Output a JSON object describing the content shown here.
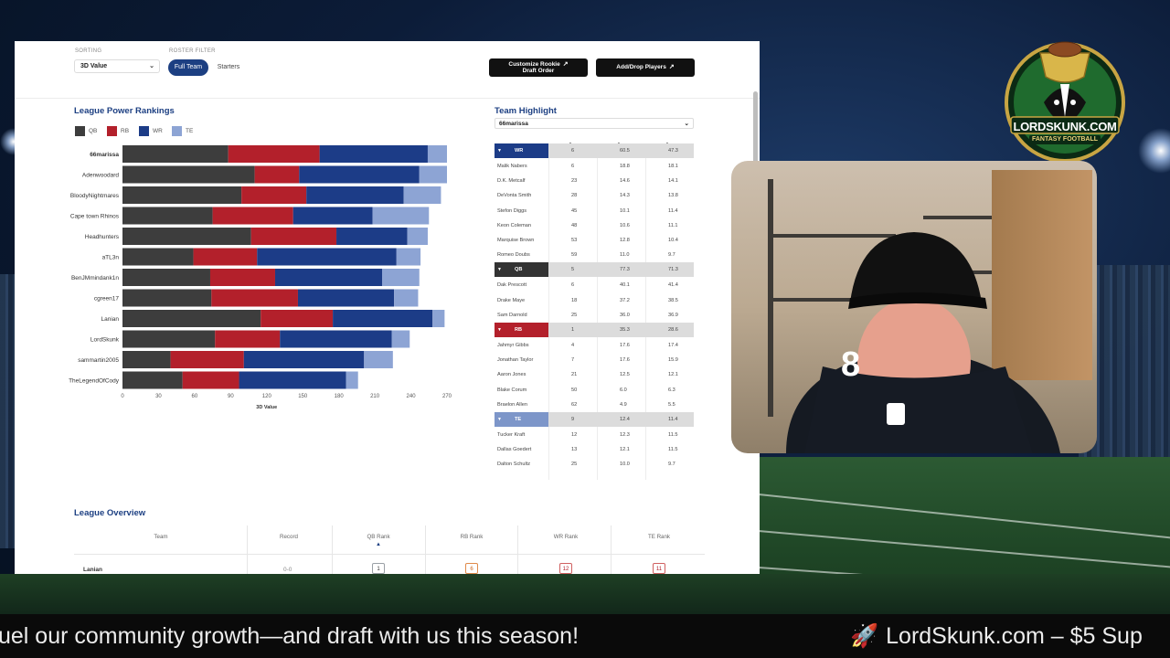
{
  "topbar": {
    "sorting_label": "SORTING",
    "sorting_value": "3D Value",
    "roster_filter_label": "ROSTER FILTER",
    "filter_full_team": "Full Team",
    "filter_starters": "Starters",
    "customize_line1": "Customize Rookie",
    "customize_line2": "Draft Order",
    "add_drop": "Add/Drop Players"
  },
  "colors": {
    "qb": "#3d3d3d",
    "rb": "#b3202b",
    "wr": "#1c3c87",
    "te": "#8da4d4",
    "accent": "#1c3f82"
  },
  "power_rankings": {
    "title": "League Power Rankings",
    "legend": [
      "QB",
      "RB",
      "WR",
      "TE"
    ]
  },
  "chart_data": {
    "type": "bar",
    "orientation": "horizontal-stacked",
    "xlabel": "3D Value",
    "xlim": [
      0,
      270
    ],
    "xticks": [
      "0",
      "30",
      "60",
      "90",
      "120",
      "150",
      "180",
      "210",
      "240",
      "270"
    ],
    "categories": [
      "66marissa",
      "Adenwoodard",
      "BloodyNightmares",
      "Cape town Rhinos",
      "Headhunters",
      "aTL3n",
      "BenJMmindank1n",
      "cgreen17",
      "Lanian",
      "LordSkunk",
      "sammartin2005",
      "TheLegendOfCody"
    ],
    "series": [
      {
        "name": "QB",
        "values": [
          88,
          110,
          99,
          75,
          107,
          59,
          73,
          74,
          115,
          77,
          40,
          50
        ]
      },
      {
        "name": "RB",
        "values": [
          76,
          37,
          54,
          67,
          71,
          53,
          54,
          72,
          60,
          54,
          61,
          47
        ]
      },
      {
        "name": "WR",
        "values": [
          90,
          100,
          81,
          66,
          59,
          116,
          89,
          80,
          83,
          93,
          100,
          89
        ]
      },
      {
        "name": "TE",
        "values": [
          16,
          23,
          31,
          47,
          17,
          20,
          31,
          20,
          10,
          15,
          24,
          10
        ]
      }
    ]
  },
  "team_highlight": {
    "title": "Team Highlight",
    "selected_team": "66marissa",
    "sort_arrows": [
      "▲",
      "▲",
      "▲"
    ],
    "groups": [
      {
        "pos": "WR",
        "color": "#1c3c87",
        "rank": "6",
        "v1": "60.5",
        "v2": "47.3",
        "players": [
          [
            "Malik Nabers",
            "6",
            "18.8",
            "18.1"
          ],
          [
            "D.K. Metcalf",
            "23",
            "14.6",
            "14.1"
          ],
          [
            "DeVonta Smith",
            "28",
            "14.3",
            "13.8"
          ],
          [
            "Stefon Diggs",
            "45",
            "10.1",
            "11.4"
          ],
          [
            "Keon Coleman",
            "48",
            "10.6",
            "11.1"
          ],
          [
            "Marquise Brown",
            "53",
            "12.8",
            "10.4"
          ],
          [
            "Romeo Doubs",
            "59",
            "11.0",
            "9.7"
          ]
        ]
      },
      {
        "pos": "QB",
        "color": "#333333",
        "rank": "5",
        "v1": "77.3",
        "v2": "71.3",
        "players": [
          [
            "Dak Prescott",
            "6",
            "40.1",
            "41.4"
          ],
          [
            "Drake Maye",
            "18",
            "37.2",
            "38.5"
          ],
          [
            "Sam Darnold",
            "25",
            "36.0",
            "36.9"
          ]
        ]
      },
      {
        "pos": "RB",
        "color": "#b3202b",
        "rank": "1",
        "v1": "35.3",
        "v2": "28.6",
        "players": [
          [
            "Jahmyr Gibbs",
            "4",
            "17.6",
            "17.4"
          ],
          [
            "Jonathan Taylor",
            "7",
            "17.6",
            "15.9"
          ],
          [
            "Aaron Jones",
            "21",
            "12.5",
            "12.1"
          ],
          [
            "Blake Corum",
            "50",
            "6.0",
            "6.3"
          ],
          [
            "Braelon Allen",
            "62",
            "4.9",
            "5.5"
          ]
        ]
      },
      {
        "pos": "TE",
        "color": "#7d96c9",
        "rank": "9",
        "v1": "12.4",
        "v2": "11.4",
        "players": [
          [
            "Tucker Kraft",
            "12",
            "12.3",
            "11.5"
          ],
          [
            "Dallas Goedert",
            "13",
            "12.1",
            "11.5"
          ],
          [
            "Dalton Schultz",
            "25",
            "10.0",
            "9.7"
          ]
        ]
      }
    ]
  },
  "overview": {
    "title": "League Overview",
    "headers": [
      "Team",
      "Record",
      "QB Rank",
      "RB Rank",
      "WR Rank",
      "TE Rank"
    ],
    "sort_arrow": "▲",
    "first_row": {
      "team": "Lanian",
      "record": "0-0",
      "qb": "1",
      "rb": "6",
      "wr": "12",
      "te": "11"
    }
  },
  "logo": {
    "line1": "LORDSKUNK.COM",
    "line2": "FANTASY FOOTBALL"
  },
  "ticker": {
    "text1": "uel our community growth—and draft with us this season!",
    "text2": "LordSkunk.com – $5 Sup"
  }
}
